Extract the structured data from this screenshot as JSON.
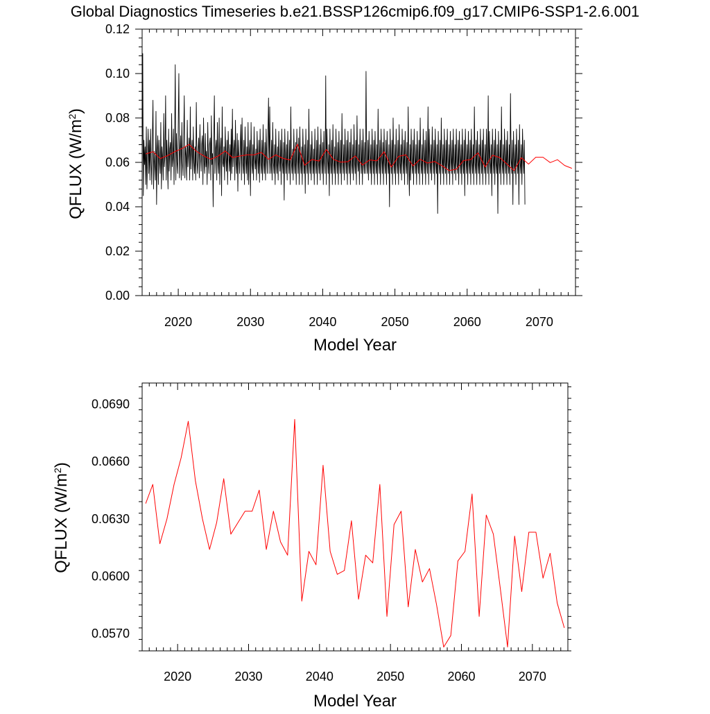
{
  "title": "Global Diagnostics Timeseries b.e21.BSSP126cmip6.f09_g17.CMIP6-SSP1-2.6.001",
  "colors": {
    "monthly": "#000000",
    "annual": "#ff0000",
    "axis": "#000000"
  },
  "chart_data": [
    {
      "type": "line",
      "xlabel": "Model Year",
      "ylabel_main": "QFLUX (W/m",
      "ylabel_sup": "2",
      "ylabel_tail": ")",
      "xlim": [
        2015,
        2075
      ],
      "ylim": [
        0.0,
        0.12
      ],
      "xticks": [
        2020,
        2030,
        2040,
        2050,
        2060,
        2070
      ],
      "xtick_labels": [
        "2020",
        "2030",
        "2040",
        "2050",
        "2060",
        "2070"
      ],
      "yticks": [
        0.0,
        0.02,
        0.04,
        0.06,
        0.08,
        0.1,
        0.12
      ],
      "ytick_labels": [
        "0.00",
        "0.02",
        "0.04",
        "0.06",
        "0.08",
        "0.10",
        "0.12"
      ],
      "series": [
        {
          "role": "monthly",
          "color": "#000000",
          "x_start": 2015.0,
          "x_step": 0.083333,
          "values": [
            0.052,
            0.109,
            0.045,
            0.07,
            0.059,
            0.067,
            0.05,
            0.076,
            0.048,
            0.062,
            0.075,
            0.055,
            0.07,
            0.052,
            0.075,
            0.061,
            0.05,
            0.07,
            0.088,
            0.048,
            0.065,
            0.059,
            0.052,
            0.083,
            0.041,
            0.065,
            0.072,
            0.05,
            0.07,
            0.06,
            0.055,
            0.078,
            0.048,
            0.067,
            0.062,
            0.052,
            0.082,
            0.058,
            0.063,
            0.09,
            0.052,
            0.07,
            0.061,
            0.048,
            0.075,
            0.056,
            0.066,
            0.069,
            0.052,
            0.082,
            0.058,
            0.062,
            0.075,
            0.05,
            0.068,
            0.104,
            0.052,
            0.073,
            0.06,
            0.055,
            0.077,
            0.1,
            0.053,
            0.066,
            0.072,
            0.052,
            0.078,
            0.06,
            0.054,
            0.07,
            0.09,
            0.053,
            0.067,
            0.063,
            0.052,
            0.079,
            0.058,
            0.064,
            0.071,
            0.052,
            0.085,
            0.057,
            0.065,
            0.07,
            0.052,
            0.076,
            0.06,
            0.055,
            0.067,
            0.052,
            0.087,
            0.061,
            0.055,
            0.066,
            0.071,
            0.053,
            0.077,
            0.063,
            0.056,
            0.068,
            0.072,
            0.05,
            0.08,
            0.06,
            0.055,
            0.073,
            0.058,
            0.065,
            0.05,
            0.078,
            0.062,
            0.055,
            0.068,
            0.071,
            0.052,
            0.081,
            0.059,
            0.064,
            0.04,
            0.07,
            0.09,
            0.055,
            0.066,
            0.07,
            0.052,
            0.078,
            0.06,
            0.055,
            0.08,
            0.05,
            0.066,
            0.071,
            0.045,
            0.085,
            0.06,
            0.058,
            0.067,
            0.052,
            0.076,
            0.062,
            0.056,
            0.07,
            0.05,
            0.074,
            0.064,
            0.056,
            0.068,
            0.052,
            0.075,
            0.055,
            0.084,
            0.058,
            0.065,
            0.07,
            0.052,
            0.079,
            0.06,
            0.055,
            0.073,
            0.047,
            0.07,
            0.062,
            0.055,
            0.066,
            0.077,
            0.052,
            0.08,
            0.06,
            0.055,
            0.07,
            0.05,
            0.076,
            0.062,
            0.055,
            0.067,
            0.052,
            0.078,
            0.05,
            0.064,
            0.07,
            0.045,
            0.078,
            0.06,
            0.055,
            0.068,
            0.052,
            0.076,
            0.061,
            0.057,
            0.066,
            0.052,
            0.074,
            0.062,
            0.055,
            0.07,
            0.051,
            0.075,
            0.06,
            0.055,
            0.07,
            0.052,
            0.077,
            0.06,
            0.055,
            0.069,
            0.052,
            0.075,
            0.062,
            0.055,
            0.072,
            0.089,
            0.055,
            0.085,
            0.06,
            0.055,
            0.07,
            0.052,
            0.078,
            0.06,
            0.055,
            0.068,
            0.05,
            0.075,
            0.06,
            0.055,
            0.067,
            0.052,
            0.074,
            0.061,
            0.056,
            0.07,
            0.05,
            0.075,
            0.06,
            0.055,
            0.069,
            0.043,
            0.075,
            0.062,
            0.055,
            0.068,
            0.052,
            0.074,
            0.06,
            0.055,
            0.07,
            0.05,
            0.085,
            0.06,
            0.055,
            0.066,
            0.052,
            0.075,
            0.06,
            0.055,
            0.069,
            0.05,
            0.075,
            0.062,
            0.055,
            0.071,
            0.05,
            0.076,
            0.06,
            0.055,
            0.067,
            0.05,
            0.075,
            0.062,
            0.055,
            0.068,
            0.046,
            0.075,
            0.06,
            0.055,
            0.07,
            0.05,
            0.084,
            0.06,
            0.055,
            0.068,
            0.052,
            0.074,
            0.062,
            0.055,
            0.066,
            0.05,
            0.075,
            0.06,
            0.055,
            0.07,
            0.05,
            0.076,
            0.06,
            0.055,
            0.068,
            0.052,
            0.075,
            0.062,
            0.055,
            0.069,
            0.05,
            0.074,
            0.06,
            0.055,
            0.099,
            0.05,
            0.075,
            0.062,
            0.055,
            0.068,
            0.045,
            0.075,
            0.06,
            0.055,
            0.07,
            0.05,
            0.077,
            0.06,
            0.055,
            0.067,
            0.05,
            0.075,
            0.062,
            0.055,
            0.069,
            0.05,
            0.074,
            0.06,
            0.055,
            0.07,
            0.05,
            0.082,
            0.06,
            0.055,
            0.068,
            0.052,
            0.075,
            0.062,
            0.055,
            0.07,
            0.05,
            0.074,
            0.06,
            0.055,
            0.069,
            0.05,
            0.075,
            0.06,
            0.055,
            0.068,
            0.052,
            0.077,
            0.06,
            0.055,
            0.07,
            0.05,
            0.081,
            0.06,
            0.056,
            0.068,
            0.05,
            0.075,
            0.062,
            0.055,
            0.07,
            0.05,
            0.075,
            0.06,
            0.055,
            0.069,
            0.055,
            0.101,
            0.06,
            0.055,
            0.07,
            0.052,
            0.074,
            0.06,
            0.055,
            0.068,
            0.05,
            0.075,
            0.062,
            0.055,
            0.07,
            0.05,
            0.074,
            0.06,
            0.055,
            0.068,
            0.05,
            0.084,
            0.06,
            0.055,
            0.07,
            0.05,
            0.075,
            0.062,
            0.055,
            0.069,
            0.05,
            0.075,
            0.06,
            0.055,
            0.07,
            0.05,
            0.074,
            0.06,
            0.055,
            0.068,
            0.04,
            0.075,
            0.062,
            0.055,
            0.07,
            0.05,
            0.08,
            0.06,
            0.055,
            0.068,
            0.05,
            0.075,
            0.06,
            0.055,
            0.07,
            0.05,
            0.077,
            0.06,
            0.055,
            0.068,
            0.052,
            0.075,
            0.062,
            0.055,
            0.07,
            0.05,
            0.074,
            0.06,
            0.055,
            0.069,
            0.05,
            0.085,
            0.06,
            0.045,
            0.068,
            0.052,
            0.075,
            0.06,
            0.055,
            0.07,
            0.05,
            0.075,
            0.062,
            0.055,
            0.068,
            0.05,
            0.074,
            0.06,
            0.055,
            0.07,
            0.05,
            0.08,
            0.06,
            0.055,
            0.068,
            0.05,
            0.075,
            0.062,
            0.055,
            0.07,
            0.05,
            0.074,
            0.06,
            0.055,
            0.085,
            0.05,
            0.075,
            0.06,
            0.055,
            0.068,
            0.052,
            0.076,
            0.062,
            0.055,
            0.07,
            0.05,
            0.075,
            0.06,
            0.055,
            0.068,
            0.037,
            0.074,
            0.06,
            0.055,
            0.07,
            0.05,
            0.08,
            0.062,
            0.055,
            0.068,
            0.05,
            0.075,
            0.06,
            0.055,
            0.07,
            0.05,
            0.075,
            0.06,
            0.055,
            0.068,
            0.05,
            0.074,
            0.062,
            0.055,
            0.07,
            0.05,
            0.075,
            0.06,
            0.055,
            0.068,
            0.052,
            0.075,
            0.06,
            0.055,
            0.07,
            0.05,
            0.074,
            0.062,
            0.055,
            0.068,
            0.05,
            0.075,
            0.06,
            0.055,
            0.07,
            0.045,
            0.075,
            0.062,
            0.055,
            0.068,
            0.05,
            0.074,
            0.06,
            0.055,
            0.07,
            0.05,
            0.075,
            0.06,
            0.055,
            0.068,
            0.05,
            0.085,
            0.06,
            0.055,
            0.07,
            0.05,
            0.074,
            0.06,
            0.055,
            0.068,
            0.05,
            0.075,
            0.062,
            0.055,
            0.07,
            0.05,
            0.075,
            0.06,
            0.055,
            0.068,
            0.05,
            0.075,
            0.062,
            0.055,
            0.09,
            0.05,
            0.074,
            0.06,
            0.055,
            0.068,
            0.045,
            0.075,
            0.062,
            0.055,
            0.07,
            0.05,
            0.075,
            0.06,
            0.055,
            0.068,
            0.037,
            0.074,
            0.06,
            0.055,
            0.07,
            0.05,
            0.085,
            0.06,
            0.055,
            0.068,
            0.05,
            0.075,
            0.062,
            0.055,
            0.07,
            0.05,
            0.074,
            0.06,
            0.055,
            0.068,
            0.05,
            0.091,
            0.062,
            0.055,
            0.07,
            0.041,
            0.074,
            0.06,
            0.055,
            0.068,
            0.05,
            0.075,
            0.062,
            0.055,
            0.07,
            0.041,
            0.077,
            0.06,
            0.055,
            0.068,
            0.05,
            0.075,
            0.062,
            0.055,
            0.07,
            0.041
          ]
        },
        {
          "role": "annual",
          "color": "#ff0000",
          "x_start": 2015.5,
          "x_step": 1.0,
          "values": [
            0.0638,
            0.0648,
            0.0617,
            0.063,
            0.0648,
            0.0662,
            0.0681,
            0.065,
            0.063,
            0.0614,
            0.0628,
            0.0651,
            0.0622,
            0.0628,
            0.0634,
            0.0634,
            0.0645,
            0.0614,
            0.0634,
            0.0618,
            0.0611,
            0.0682,
            0.0587,
            0.0613,
            0.0606,
            0.0658,
            0.0613,
            0.0601,
            0.0603,
            0.0629,
            0.0588,
            0.0611,
            0.0607,
            0.0648,
            0.0579,
            0.0627,
            0.0634,
            0.0584,
            0.0614,
            0.0597,
            0.0604,
            0.0585,
            0.0563,
            0.0569,
            0.0608,
            0.0613,
            0.0643,
            0.0579,
            0.0632,
            0.0622,
            0.0593,
            0.0563,
            0.0621,
            0.0592,
            0.0623,
            0.0623,
            0.0599,
            0.0612,
            0.0586,
            0.0573
          ]
        }
      ]
    },
    {
      "type": "line",
      "xlabel": "Model Year",
      "ylabel_main": "QFLUX (W/m",
      "ylabel_sup": "2",
      "ylabel_tail": ")",
      "xlim": [
        2015,
        2075
      ],
      "ylim": [
        0.0561,
        0.0701
      ],
      "xticks": [
        2020,
        2030,
        2040,
        2050,
        2060,
        2070
      ],
      "xtick_labels": [
        "2020",
        "2030",
        "2040",
        "2050",
        "2060",
        "2070"
      ],
      "yticks": [
        0.057,
        0.06,
        0.063,
        0.066,
        0.069
      ],
      "ytick_labels": [
        "0.0570",
        "0.0600",
        "0.0630",
        "0.0660",
        "0.0690"
      ],
      "series": [
        {
          "role": "annual",
          "color": "#ff0000",
          "x_start": 2015.5,
          "x_step": 1.0,
          "values": [
            0.0638,
            0.0648,
            0.0617,
            0.063,
            0.0648,
            0.0662,
            0.0681,
            0.065,
            0.063,
            0.0614,
            0.0628,
            0.0651,
            0.0622,
            0.0628,
            0.0634,
            0.0634,
            0.0645,
            0.0614,
            0.0634,
            0.0618,
            0.0611,
            0.0682,
            0.0587,
            0.0613,
            0.0606,
            0.0658,
            0.0613,
            0.0601,
            0.0603,
            0.0629,
            0.0588,
            0.0611,
            0.0607,
            0.0648,
            0.0579,
            0.0627,
            0.0634,
            0.0584,
            0.0614,
            0.0597,
            0.0604,
            0.0585,
            0.0563,
            0.0569,
            0.0608,
            0.0613,
            0.0643,
            0.0579,
            0.0632,
            0.0622,
            0.0593,
            0.0563,
            0.0621,
            0.0592,
            0.0623,
            0.0623,
            0.0599,
            0.0612,
            0.0586,
            0.0573
          ]
        }
      ]
    }
  ]
}
